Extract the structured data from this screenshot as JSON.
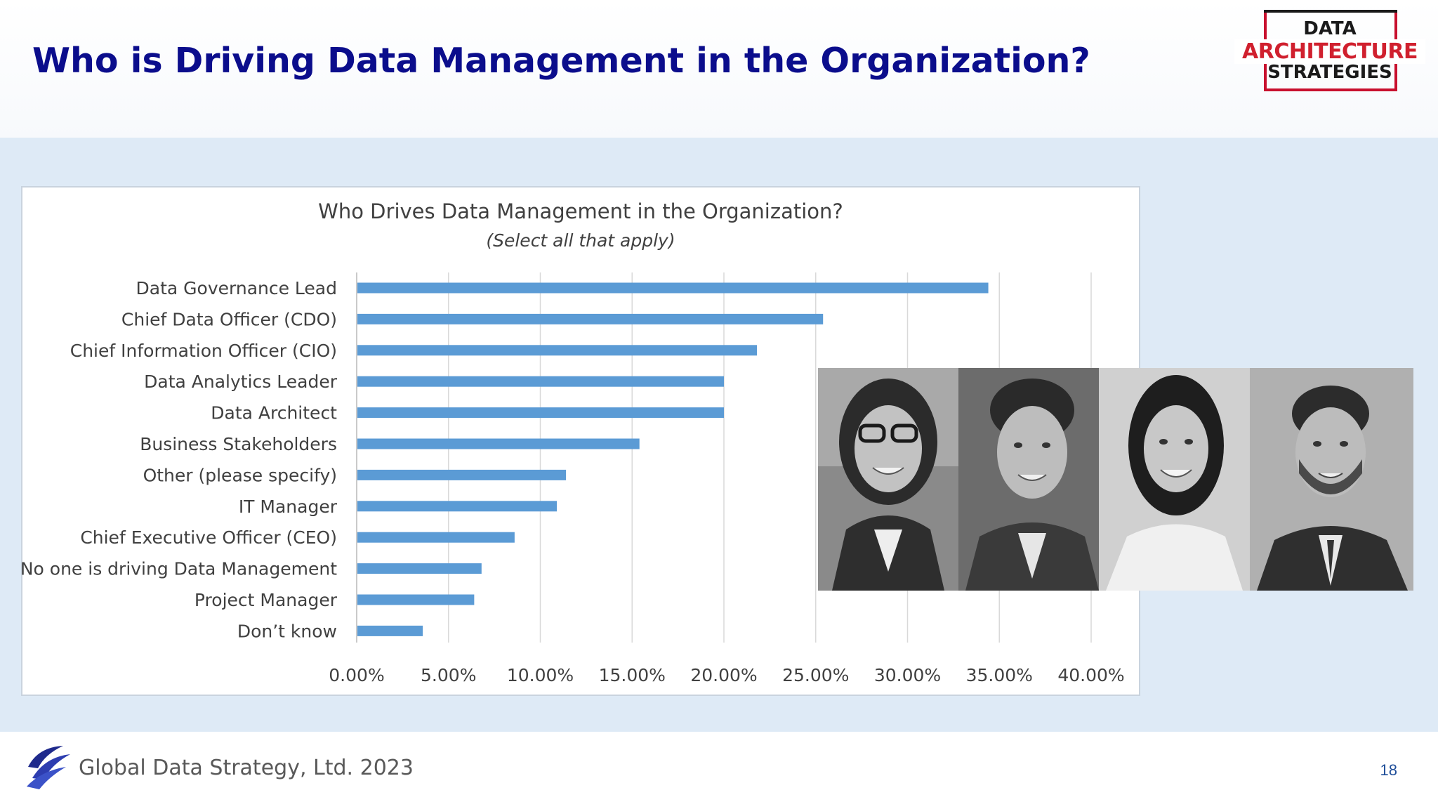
{
  "slide": {
    "title": "Who is Driving Data Management in the Organization?",
    "page_number": "18"
  },
  "logo": {
    "line1": "DATA",
    "line2": "ARCHITECTURE",
    "line3": "STRATEGIES"
  },
  "footer": {
    "text": "Global Data Strategy, Ltd. 2023"
  },
  "colors": {
    "title": "#0b0d8c",
    "bar": "#5b9bd5",
    "band": "#deeaf6",
    "logo_red": "#d0202e"
  },
  "chart_data": {
    "type": "bar",
    "orientation": "horizontal",
    "title": "Who Drives Data Management in the Organization?",
    "subtitle": "(Select all that apply)",
    "categories": [
      "Data Governance Lead",
      "Chief Data Officer (CDO)",
      "Chief Information Officer (CIO)",
      "Data Analytics Leader",
      "Data Architect",
      "Business Stakeholders",
      "Other (please specify)",
      "IT Manager",
      "Chief Executive Officer (CEO)",
      "No one is driving Data Management",
      "Project Manager",
      "Don’t know"
    ],
    "values": [
      34.4,
      25.4,
      21.8,
      20.0,
      20.0,
      15.4,
      11.4,
      10.9,
      8.6,
      6.8,
      6.4,
      3.6
    ],
    "unit": "%",
    "xlim": [
      0,
      40
    ],
    "x_ticks": [
      "0.00%",
      "5.00%",
      "10.00%",
      "15.00%",
      "20.00%",
      "25.00%",
      "30.00%",
      "35.00%",
      "40.00%"
    ],
    "grid": "vertical",
    "legend": "none"
  },
  "photos": {
    "count": 4,
    "description_icons": [
      "woman-with-glasses-portrait",
      "young-man-portrait",
      "smiling-woman-portrait",
      "bearded-man-portrait"
    ]
  }
}
